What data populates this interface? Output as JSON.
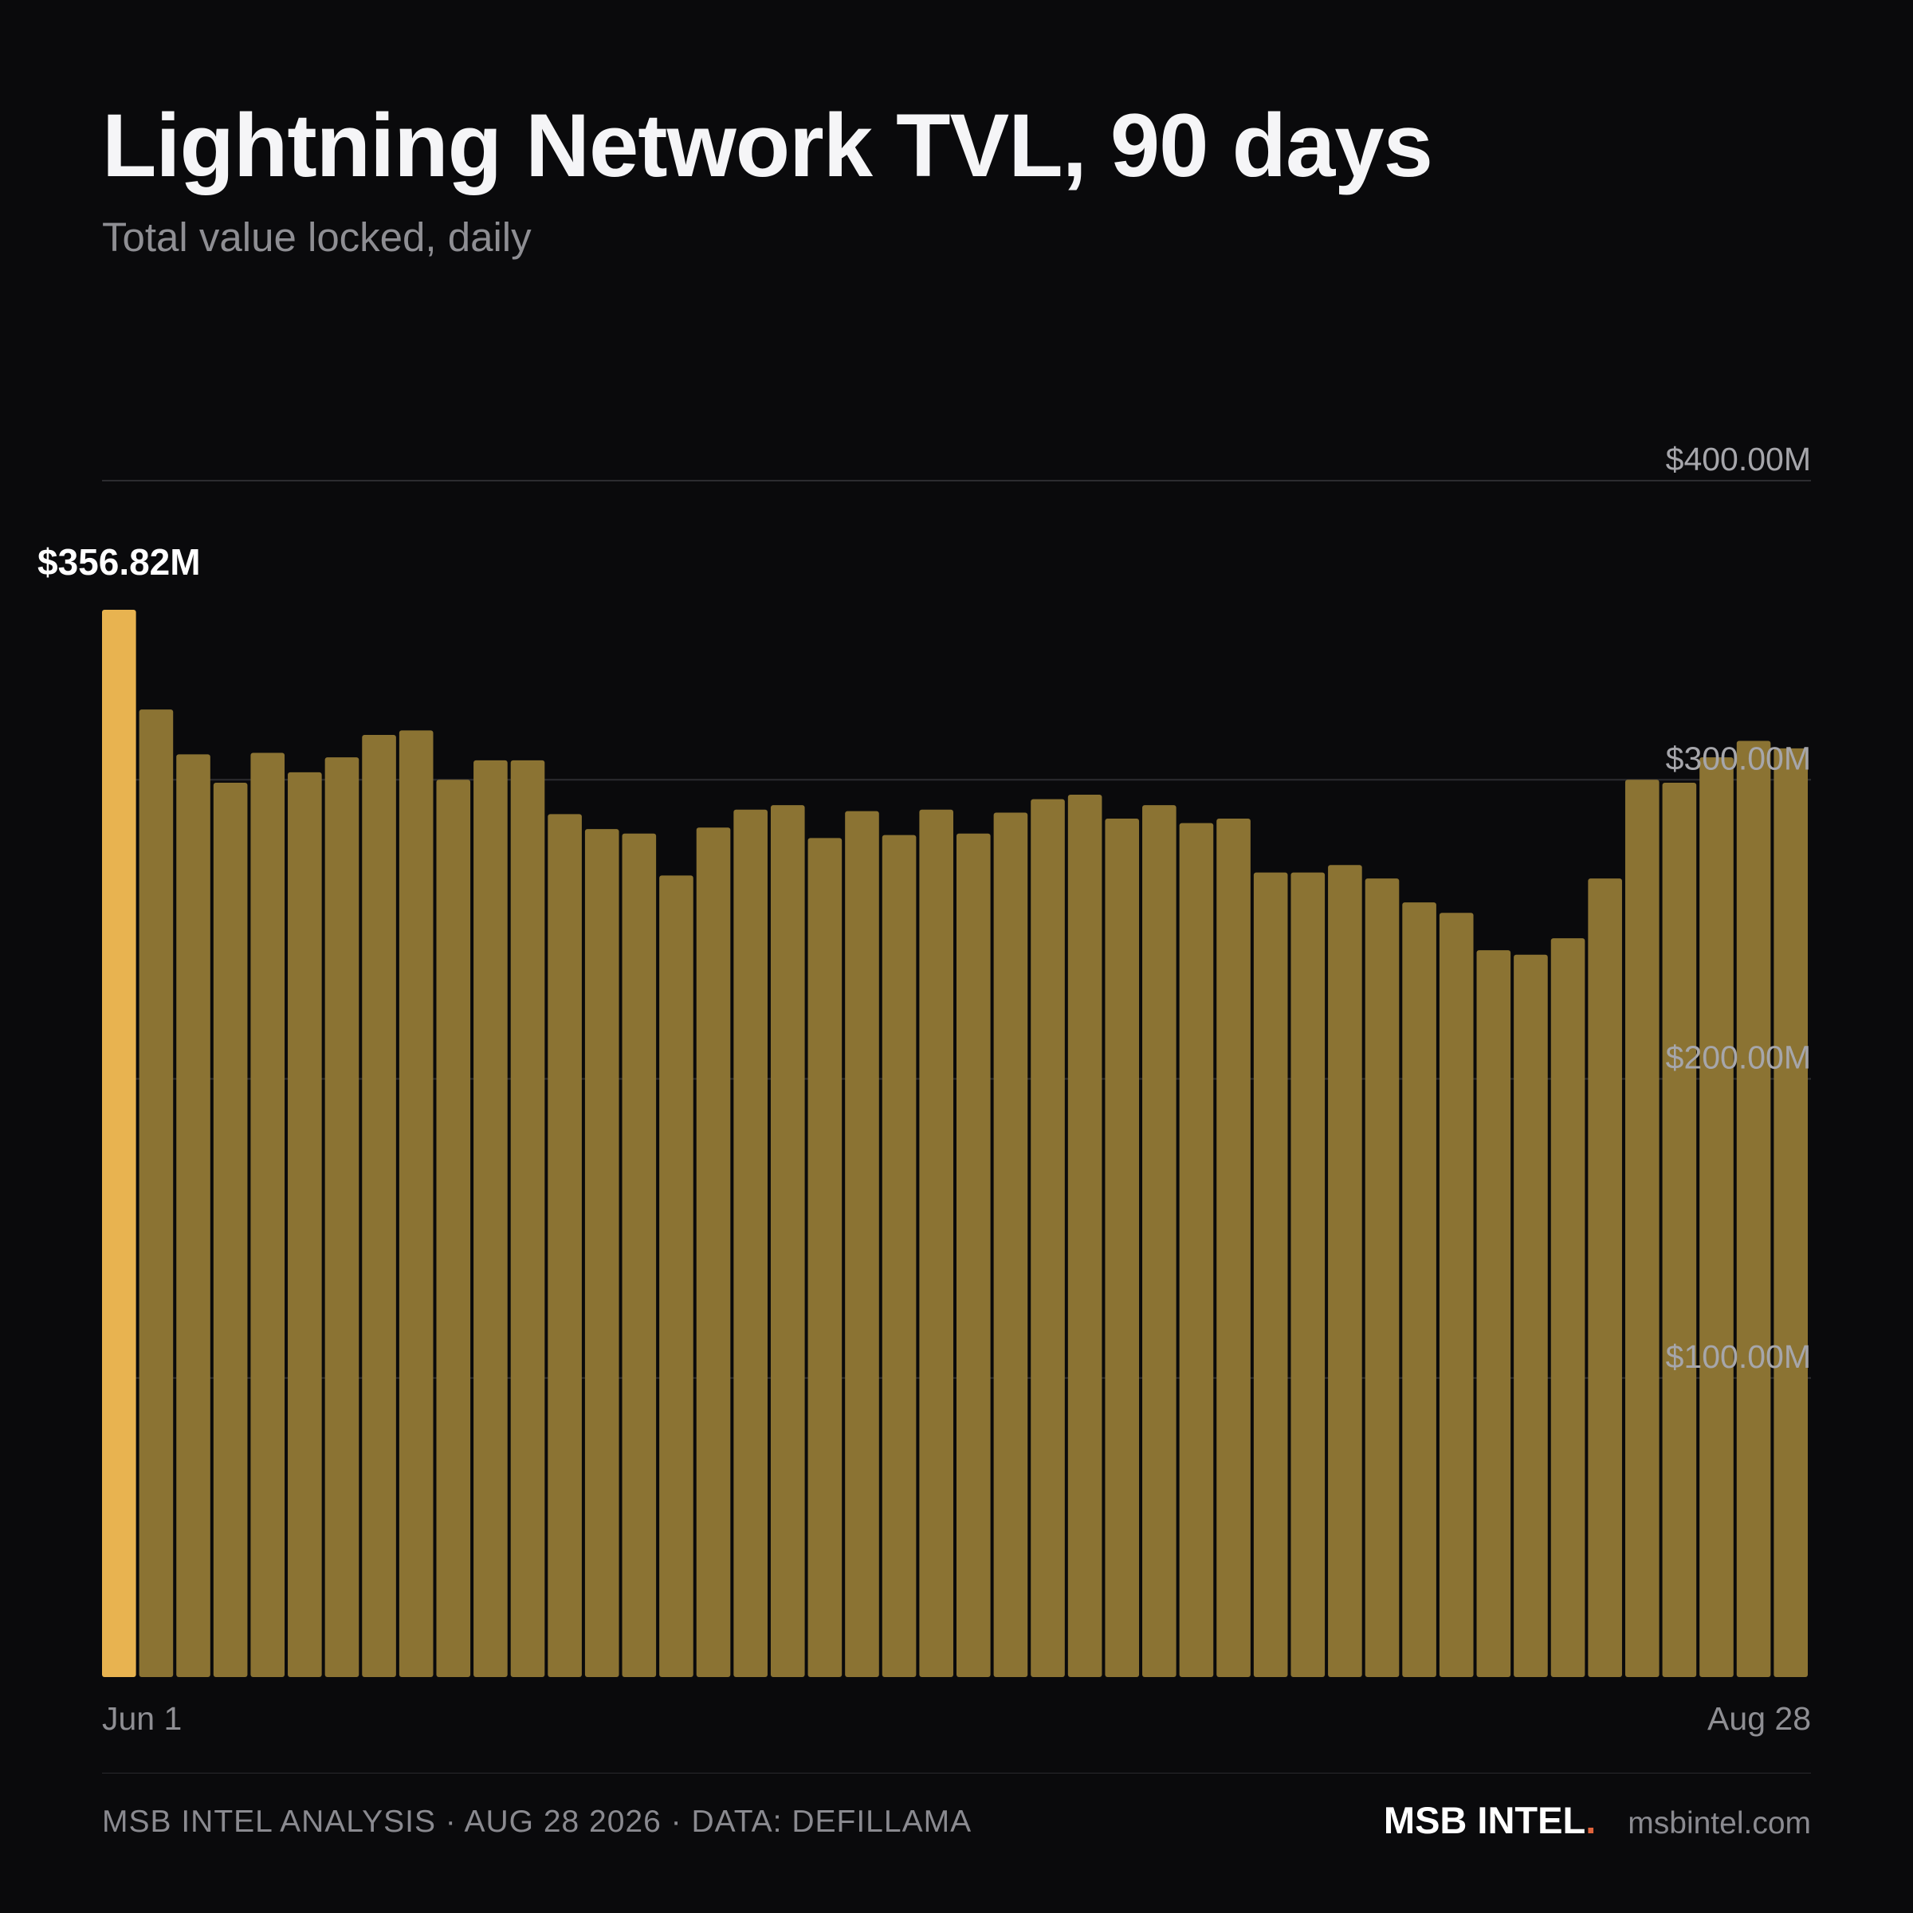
{
  "header": {
    "title": "Lightning Network TVL, 90 days",
    "subtitle": "Total value locked, daily"
  },
  "chart_data": {
    "type": "bar",
    "title": "Lightning Network TVL, 90 days",
    "subtitle": "Total value locked, daily",
    "xlabel": "",
    "ylabel": "",
    "ylim": [
      0,
      400
    ],
    "y_unit": "USD millions",
    "y_ticks": [
      100,
      200,
      300,
      400
    ],
    "y_tick_labels": [
      "$100.00M",
      "$200.00M",
      "$300.00M",
      "$400.00M"
    ],
    "y_axis_position": "right",
    "grid": true,
    "x_tick_labels": [
      "Jun 1",
      "Aug 28"
    ],
    "x_range": [
      "Jun 1",
      "Aug 28"
    ],
    "highlight_index": 0,
    "highlight_label": "$356.82M",
    "values": [
      356.82,
      323.5,
      308.5,
      299.0,
      309.0,
      302.5,
      307.5,
      315.0,
      316.5,
      300.0,
      306.5,
      306.5,
      288.5,
      283.5,
      282.0,
      268.0,
      284.0,
      290.0,
      291.5,
      280.5,
      289.5,
      281.5,
      290.0,
      282.0,
      289.0,
      293.5,
      295.0,
      287.0,
      291.5,
      285.5,
      287.0,
      269.0,
      269.0,
      271.5,
      267.0,
      259.0,
      255.5,
      243.0,
      241.5,
      247.0,
      267.0,
      300.0,
      299.0,
      307.5,
      313.0,
      310.5
    ],
    "colors": {
      "bar": "#8b7333",
      "highlight": "#e8b350",
      "grid": "#2c2c30",
      "tick_label": "#a6a6ab",
      "value_label": "#ffffff"
    }
  },
  "footer": {
    "source": "MSB INTEL ANALYSIS · AUG 28 2026 · DATA: DEFILLAMA",
    "brand": "MSB INTEL",
    "brand_dot": ".",
    "site": "msbintel.com"
  }
}
